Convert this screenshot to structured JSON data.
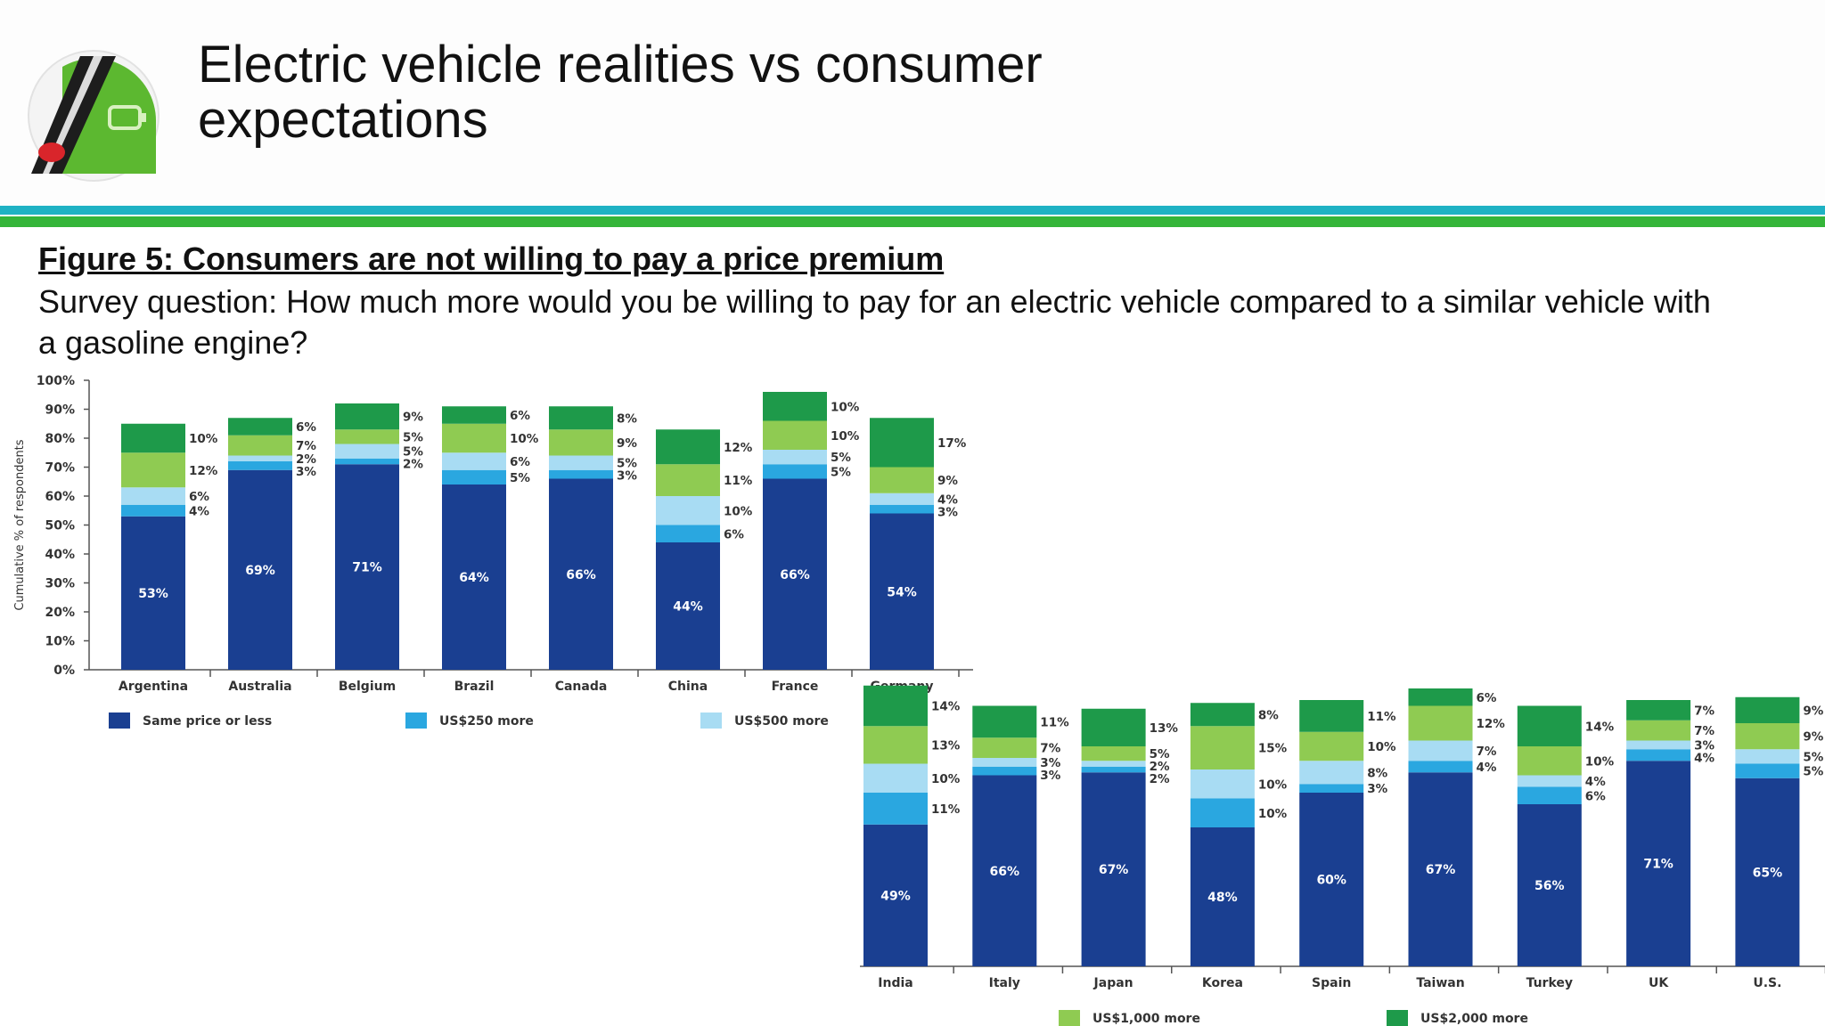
{
  "header": {
    "title_line1": "Electric vehicle realities vs consumer",
    "title_line2": "expectations",
    "logo_icon": "electric-car-plug-icon"
  },
  "figure": {
    "title": "Figure 5: Consumers are not willing to pay a price premium",
    "subtitle": "Survey question: How much more would you be willing to pay for an electric vehicle compared to a similar vehicle with a gasoline engine?"
  },
  "colors": {
    "teal_rule": "#1fb2c4",
    "green_rule": "#35b53a",
    "series": [
      "#1a3f91",
      "#2aa7e0",
      "#a8dcf3",
      "#8fcb52",
      "#1e9a4a"
    ]
  },
  "chart_data": [
    {
      "type": "bar",
      "stacked": true,
      "ylabel": "Cumulative % of respondents",
      "ylim": [
        0,
        100
      ],
      "yticks": [
        "0%",
        "10%",
        "20%",
        "30%",
        "40%",
        "50%",
        "60%",
        "70%",
        "80%",
        "90%",
        "100%"
      ],
      "categories": [
        "Argentina",
        "Australia",
        "Belgium",
        "Brazil",
        "Canada",
        "China",
        "France",
        "Germany"
      ],
      "series": [
        {
          "name": "Same price or less",
          "values": [
            53,
            69,
            71,
            64,
            66,
            44,
            66,
            54
          ]
        },
        {
          "name": "US$250 more",
          "values": [
            4,
            3,
            2,
            5,
            3,
            6,
            5,
            3
          ]
        },
        {
          "name": "US$500 more",
          "values": [
            6,
            2,
            5,
            6,
            5,
            10,
            5,
            4
          ]
        },
        {
          "name": "US$1,000 more",
          "values": [
            12,
            7,
            5,
            10,
            9,
            11,
            10,
            9
          ]
        },
        {
          "name": "US$2,000 more",
          "values": [
            10,
            6,
            9,
            6,
            8,
            12,
            10,
            17
          ]
        }
      ],
      "labels": {
        "inside": [
          "53%",
          "69%",
          "71%",
          "64%",
          "66%",
          "44%",
          "66%",
          "54%"
        ],
        "right": [
          [
            "10%",
            "12%",
            "6%",
            "4%"
          ],
          [
            "6%",
            "7%",
            "2%",
            "3%"
          ],
          [
            "9%",
            "5%",
            "5%",
            "2%"
          ],
          [
            "6%",
            "10%",
            "6%",
            "5%"
          ],
          [
            "8%",
            "9%",
            "5%",
            "3%"
          ],
          [
            "12%",
            "11%",
            "10%",
            "6%"
          ],
          [
            "10%",
            "10%",
            "5%",
            "5%"
          ],
          [
            "17%",
            "9%",
            "4%",
            "3%"
          ]
        ]
      },
      "legend": [
        "Same price or less",
        "US$250 more",
        "US$500 more"
      ]
    },
    {
      "type": "bar",
      "stacked": true,
      "ylim": [
        0,
        100
      ],
      "categories": [
        "India",
        "Italy",
        "Japan",
        "Korea",
        "Spain",
        "Taiwan",
        "Turkey",
        "UK",
        "U.S."
      ],
      "series": [
        {
          "name": "Same price or less",
          "values": [
            49,
            66,
            67,
            48,
            60,
            67,
            56,
            71,
            65
          ]
        },
        {
          "name": "US$250 more",
          "values": [
            11,
            3,
            2,
            10,
            3,
            4,
            6,
            4,
            5
          ]
        },
        {
          "name": "US$500 more",
          "values": [
            10,
            3,
            2,
            10,
            8,
            7,
            4,
            3,
            5
          ]
        },
        {
          "name": "US$1,000 more",
          "values": [
            13,
            7,
            5,
            15,
            10,
            12,
            10,
            7,
            9
          ]
        },
        {
          "name": "US$2,000 more",
          "values": [
            14,
            11,
            13,
            8,
            11,
            6,
            14,
            7,
            9
          ]
        }
      ],
      "labels": {
        "inside": [
          "49%",
          "66%",
          "67%",
          "48%",
          "60%",
          "67%",
          "56%",
          "71%",
          "65%"
        ],
        "right": [
          [
            "14%",
            "13%",
            "10%",
            "11%"
          ],
          [
            "11%",
            "7%",
            "3%",
            "3%"
          ],
          [
            "13%",
            "5%",
            "2%",
            "2%"
          ],
          [
            "8%",
            "15%",
            "10%",
            "10%"
          ],
          [
            "11%",
            "10%",
            "8%",
            "3%"
          ],
          [
            "6%",
            "12%",
            "7%",
            "4%"
          ],
          [
            "14%",
            "10%",
            "4%",
            "6%"
          ],
          [
            "7%",
            "7%",
            "3%",
            "4%"
          ],
          [
            "9%",
            "9%",
            "5%",
            "5%"
          ]
        ]
      },
      "legend": [
        "US$1,000 more",
        "US$2,000 more"
      ]
    }
  ]
}
